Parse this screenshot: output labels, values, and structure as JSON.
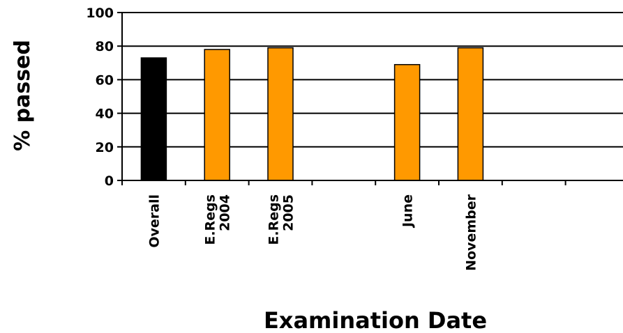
{
  "chart_data": {
    "type": "bar",
    "title": "",
    "xlabel": "Examination Date",
    "ylabel": "% passed",
    "ylim": [
      0,
      100
    ],
    "yticks": [
      0,
      20,
      40,
      60,
      80,
      100
    ],
    "grid": true,
    "categories": [
      {
        "lines": [
          "Overall"
        ]
      },
      {
        "lines": [
          "E.Regs",
          "2004"
        ]
      },
      {
        "lines": [
          "E.Regs",
          "2005"
        ]
      },
      {
        "lines": [
          ""
        ]
      },
      {
        "lines": [
          "June"
        ]
      },
      {
        "lines": [
          "November"
        ]
      },
      {
        "lines": [
          ""
        ]
      },
      {
        "lines": [
          ""
        ]
      }
    ],
    "values": [
      73,
      78,
      79,
      null,
      69,
      79,
      null,
      null
    ],
    "colors": [
      "#000000",
      "#FF9900",
      "#FF9900",
      null,
      "#FF9900",
      "#FF9900",
      null,
      null
    ]
  }
}
